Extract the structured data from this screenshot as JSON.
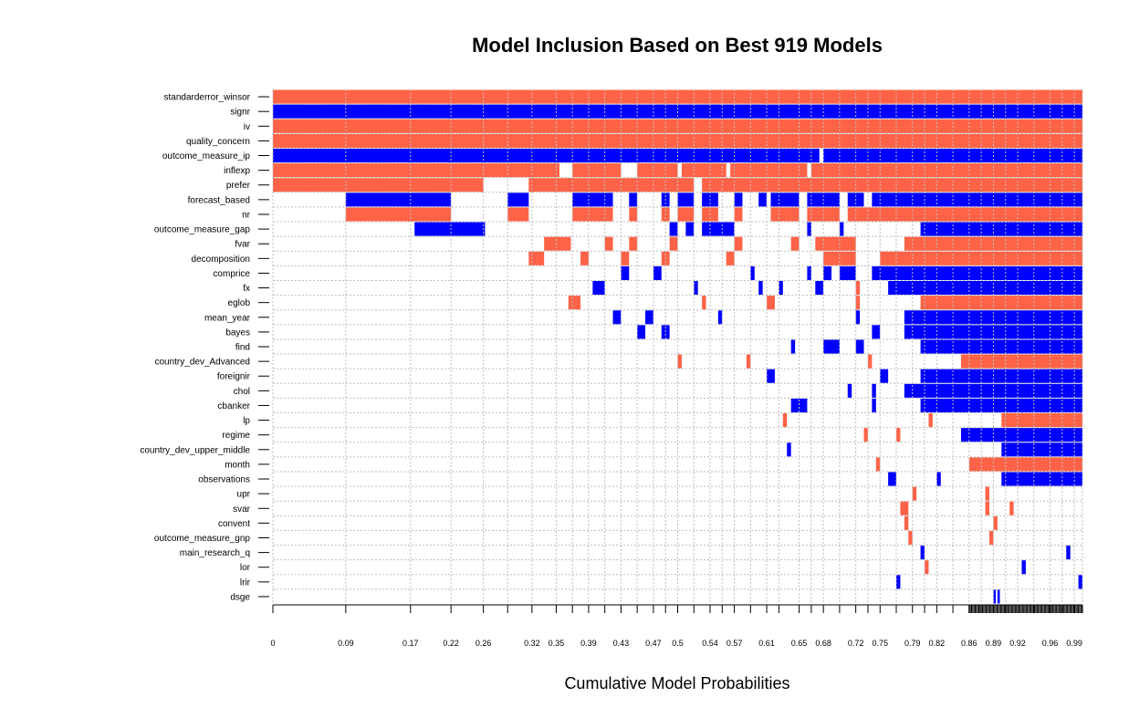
{
  "chart_data": {
    "type": "heatmap",
    "title": "Model Inclusion Based on Best  919  Models",
    "xlabel": "Cumulative Model Probabilities",
    "ylabel": "",
    "n_models": 919,
    "xlim": [
      0,
      1
    ],
    "grid": true,
    "colors": {
      "positive": "#FF6347",
      "negative": "#0000FF",
      "grid": "#BEBEBE",
      "background": "#FFFFFF"
    },
    "x_tick_labels": [
      0,
      0.09,
      0.17,
      0.22,
      0.26,
      0.32,
      0.35,
      0.39,
      0.43,
      0.47,
      0.5,
      0.54,
      0.57,
      0.61,
      0.65,
      0.68,
      0.72,
      0.75,
      0.79,
      0.82,
      0.86,
      0.89,
      0.92,
      0.96,
      0.99
    ],
    "model_boundaries": [
      0,
      0.09,
      0.17,
      0.22,
      0.26,
      0.29,
      0.32,
      0.35,
      0.37,
      0.39,
      0.41,
      0.43,
      0.45,
      0.47,
      0.485,
      0.5,
      0.52,
      0.54,
      0.555,
      0.57,
      0.59,
      0.61,
      0.625,
      0.65,
      0.665,
      0.68,
      0.7,
      0.72,
      0.735,
      0.75,
      0.77,
      0.79,
      0.805,
      0.82,
      0.84,
      0.86,
      0.875,
      0.89,
      0.905,
      0.92,
      0.94,
      0.96,
      0.975,
      0.99,
      1.0
    ],
    "variables": [
      {
        "name": "standarderror_winsor",
        "segments": [
          [
            0,
            1.0,
            "+"
          ]
        ]
      },
      {
        "name": "signr",
        "segments": [
          [
            0,
            1.0,
            "-"
          ]
        ]
      },
      {
        "name": "iv",
        "segments": [
          [
            0,
            1.0,
            "+"
          ]
        ]
      },
      {
        "name": "quality_concern",
        "segments": [
          [
            0,
            1.0,
            "+"
          ]
        ]
      },
      {
        "name": "outcome_measure_ip",
        "segments": [
          [
            0,
            0.675,
            "-"
          ],
          [
            0.68,
            1.0,
            "-"
          ]
        ]
      },
      {
        "name": "inflexp",
        "segments": [
          [
            0,
            0.354,
            "+"
          ],
          [
            0.37,
            0.43,
            "+"
          ],
          [
            0.45,
            0.5,
            "+"
          ],
          [
            0.505,
            0.56,
            "+"
          ],
          [
            0.565,
            0.66,
            "+"
          ],
          [
            0.665,
            1.0,
            "+"
          ]
        ]
      },
      {
        "name": "prefer",
        "segments": [
          [
            0,
            0.26,
            "+"
          ],
          [
            0.316,
            0.52,
            "+"
          ],
          [
            0.53,
            1.0,
            "+"
          ]
        ]
      },
      {
        "name": "forecast_based",
        "segments": [
          [
            0.09,
            0.22,
            "-"
          ],
          [
            0.29,
            0.316,
            "-"
          ],
          [
            0.37,
            0.42,
            "-"
          ],
          [
            0.44,
            0.45,
            "-"
          ],
          [
            0.48,
            0.49,
            "-"
          ],
          [
            0.5,
            0.52,
            "-"
          ],
          [
            0.53,
            0.55,
            "-"
          ],
          [
            0.57,
            0.58,
            "-"
          ],
          [
            0.6,
            0.61,
            "-"
          ],
          [
            0.615,
            0.65,
            "-"
          ],
          [
            0.66,
            0.7,
            "-"
          ],
          [
            0.71,
            0.73,
            "-"
          ],
          [
            0.74,
            1.0,
            "-"
          ]
        ]
      },
      {
        "name": "nr",
        "segments": [
          [
            0.09,
            0.22,
            "+"
          ],
          [
            0.29,
            0.316,
            "+"
          ],
          [
            0.37,
            0.42,
            "+"
          ],
          [
            0.44,
            0.45,
            "+"
          ],
          [
            0.48,
            0.49,
            "+"
          ],
          [
            0.5,
            0.52,
            "+"
          ],
          [
            0.53,
            0.55,
            "+"
          ],
          [
            0.57,
            0.58,
            "+"
          ],
          [
            0.615,
            0.65,
            "+"
          ],
          [
            0.66,
            0.7,
            "+"
          ],
          [
            0.71,
            1.0,
            "+"
          ]
        ]
      },
      {
        "name": "outcome_measure_gap",
        "segments": [
          [
            0.175,
            0.262,
            "-"
          ],
          [
            0.49,
            0.5,
            "-"
          ],
          [
            0.51,
            0.52,
            "-"
          ],
          [
            0.53,
            0.57,
            "-"
          ],
          [
            0.66,
            0.665,
            "-"
          ],
          [
            0.7,
            0.705,
            "-"
          ],
          [
            0.8,
            1.0,
            "-"
          ]
        ]
      },
      {
        "name": "fvar",
        "segments": [
          [
            0.335,
            0.368,
            "+"
          ],
          [
            0.41,
            0.42,
            "+"
          ],
          [
            0.44,
            0.45,
            "+"
          ],
          [
            0.49,
            0.5,
            "+"
          ],
          [
            0.57,
            0.58,
            "+"
          ],
          [
            0.64,
            0.65,
            "+"
          ],
          [
            0.67,
            0.72,
            "+"
          ],
          [
            0.78,
            1.0,
            "+"
          ]
        ]
      },
      {
        "name": "decomposition",
        "segments": [
          [
            0.316,
            0.335,
            "+"
          ],
          [
            0.38,
            0.39,
            "+"
          ],
          [
            0.43,
            0.44,
            "+"
          ],
          [
            0.48,
            0.49,
            "+"
          ],
          [
            0.56,
            0.57,
            "+"
          ],
          [
            0.68,
            0.72,
            "+"
          ],
          [
            0.75,
            1.0,
            "+"
          ]
        ]
      },
      {
        "name": "comprice",
        "segments": [
          [
            0.43,
            0.44,
            "-"
          ],
          [
            0.47,
            0.48,
            "-"
          ],
          [
            0.59,
            0.595,
            "-"
          ],
          [
            0.66,
            0.665,
            "-"
          ],
          [
            0.68,
            0.69,
            "-"
          ],
          [
            0.7,
            0.72,
            "-"
          ],
          [
            0.74,
            1.0,
            "-"
          ]
        ]
      },
      {
        "name": "fx",
        "segments": [
          [
            0.395,
            0.41,
            "-"
          ],
          [
            0.52,
            0.525,
            "-"
          ],
          [
            0.6,
            0.605,
            "-"
          ],
          [
            0.625,
            0.63,
            "-"
          ],
          [
            0.67,
            0.68,
            "-"
          ],
          [
            0.72,
            0.725,
            "+"
          ],
          [
            0.76,
            1.0,
            "-"
          ]
        ]
      },
      {
        "name": "eglob",
        "segments": [
          [
            0.365,
            0.38,
            "+"
          ],
          [
            0.53,
            0.535,
            "+"
          ],
          [
            0.61,
            0.62,
            "+"
          ],
          [
            0.72,
            0.725,
            "+"
          ],
          [
            0.8,
            1.0,
            "+"
          ]
        ]
      },
      {
        "name": "mean_year",
        "segments": [
          [
            0.42,
            0.43,
            "-"
          ],
          [
            0.46,
            0.47,
            "-"
          ],
          [
            0.55,
            0.555,
            "-"
          ],
          [
            0.72,
            0.725,
            "-"
          ],
          [
            0.78,
            1.0,
            "-"
          ]
        ]
      },
      {
        "name": "bayes",
        "segments": [
          [
            0.45,
            0.46,
            "-"
          ],
          [
            0.48,
            0.49,
            "-"
          ],
          [
            0.74,
            0.75,
            "-"
          ],
          [
            0.78,
            1.0,
            "-"
          ]
        ]
      },
      {
        "name": "find",
        "segments": [
          [
            0.64,
            0.645,
            "-"
          ],
          [
            0.68,
            0.7,
            "-"
          ],
          [
            0.72,
            0.73,
            "-"
          ],
          [
            0.8,
            1.0,
            "-"
          ]
        ]
      },
      {
        "name": "country_dev_Advanced",
        "segments": [
          [
            0.5,
            0.505,
            "+"
          ],
          [
            0.585,
            0.59,
            "+"
          ],
          [
            0.735,
            0.74,
            "+"
          ],
          [
            0.85,
            1.0,
            "+"
          ]
        ]
      },
      {
        "name": "foreignir",
        "segments": [
          [
            0.61,
            0.62,
            "-"
          ],
          [
            0.75,
            0.76,
            "-"
          ],
          [
            0.8,
            1.0,
            "-"
          ]
        ]
      },
      {
        "name": "chol",
        "segments": [
          [
            0.71,
            0.715,
            "-"
          ],
          [
            0.74,
            0.745,
            "-"
          ],
          [
            0.78,
            1.0,
            "-"
          ]
        ]
      },
      {
        "name": "cbanker",
        "segments": [
          [
            0.64,
            0.66,
            "-"
          ],
          [
            0.74,
            0.745,
            "-"
          ],
          [
            0.8,
            1.0,
            "-"
          ]
        ]
      },
      {
        "name": "lp",
        "segments": [
          [
            0.63,
            0.635,
            "+"
          ],
          [
            0.81,
            0.815,
            "+"
          ],
          [
            0.9,
            1.0,
            "+"
          ]
        ]
      },
      {
        "name": "regime",
        "segments": [
          [
            0.73,
            0.735,
            "+"
          ],
          [
            0.77,
            0.775,
            "+"
          ],
          [
            0.85,
            1.0,
            "-"
          ]
        ]
      },
      {
        "name": "country_dev_upper_middle",
        "segments": [
          [
            0.635,
            0.64,
            "-"
          ],
          [
            0.9,
            1.0,
            "-"
          ]
        ]
      },
      {
        "name": "month",
        "segments": [
          [
            0.745,
            0.75,
            "+"
          ],
          [
            0.86,
            1.0,
            "+"
          ]
        ]
      },
      {
        "name": "observations",
        "segments": [
          [
            0.76,
            0.77,
            "-"
          ],
          [
            0.82,
            0.825,
            "-"
          ],
          [
            0.9,
            1.0,
            "-"
          ]
        ]
      },
      {
        "name": "upr",
        "segments": [
          [
            0.79,
            0.795,
            "+"
          ],
          [
            0.88,
            0.885,
            "+"
          ]
        ]
      },
      {
        "name": "svar",
        "segments": [
          [
            0.775,
            0.785,
            "+"
          ],
          [
            0.88,
            0.885,
            "+"
          ],
          [
            0.91,
            0.915,
            "+"
          ]
        ]
      },
      {
        "name": "convent",
        "segments": [
          [
            0.78,
            0.785,
            "+"
          ],
          [
            0.89,
            0.895,
            "+"
          ]
        ]
      },
      {
        "name": "outcome_measure_gnp",
        "segments": [
          [
            0.785,
            0.79,
            "+"
          ],
          [
            0.885,
            0.89,
            "+"
          ]
        ]
      },
      {
        "name": "main_research_q",
        "segments": [
          [
            0.8,
            0.805,
            "-"
          ],
          [
            0.98,
            0.985,
            "-"
          ]
        ]
      },
      {
        "name": "lor",
        "segments": [
          [
            0.805,
            0.81,
            "+"
          ],
          [
            0.925,
            0.93,
            "-"
          ]
        ]
      },
      {
        "name": "lrir",
        "segments": [
          [
            0.77,
            0.775,
            "-"
          ],
          [
            0.995,
            1.0,
            "-"
          ]
        ]
      },
      {
        "name": "dsge",
        "segments": [
          [
            0.89,
            0.893,
            "-"
          ],
          [
            0.895,
            0.898,
            "-"
          ]
        ]
      }
    ]
  }
}
